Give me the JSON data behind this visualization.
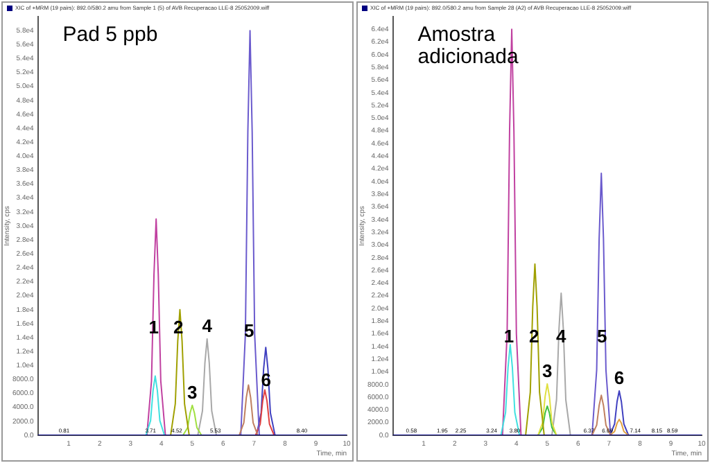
{
  "chart_data": [
    {
      "type": "line",
      "title": "XIC of +MRM (19 pairs): 892.0/580.2 amu from Sample 1 (5) of AVB Recuperacao LLE-8 25052009.wiff",
      "xlabel": "Time, min",
      "ylabel": "Intensity, cps",
      "legend": false,
      "grid": false,
      "marker": "none",
      "line_style": "solid",
      "xlim": [
        0,
        10
      ],
      "xticks": [
        1,
        2,
        3,
        4,
        5,
        6,
        7,
        8,
        9,
        10
      ],
      "ylim": [
        0,
        60000
      ],
      "yticks": [
        {
          "value": 0,
          "label": "0.0"
        },
        {
          "value": 2000,
          "label": "2000.0"
        },
        {
          "value": 4000,
          "label": "4000.0"
        },
        {
          "value": 6000,
          "label": "6000.0"
        },
        {
          "value": 8000,
          "label": "8000.0"
        },
        {
          "value": 10000,
          "label": "1.0e4"
        },
        {
          "value": 12000,
          "label": "1.2e4"
        },
        {
          "value": 14000,
          "label": "1.4e4"
        },
        {
          "value": 16000,
          "label": "1.6e4"
        },
        {
          "value": 18000,
          "label": "1.8e4"
        },
        {
          "value": 20000,
          "label": "2.0e4"
        },
        {
          "value": 22000,
          "label": "2.2e4"
        },
        {
          "value": 24000,
          "label": "2.4e4"
        },
        {
          "value": 26000,
          "label": "2.6e4"
        },
        {
          "value": 28000,
          "label": "2.8e4"
        },
        {
          "value": 30000,
          "label": "3.0e4"
        },
        {
          "value": 32000,
          "label": "3.2e4"
        },
        {
          "value": 34000,
          "label": "3.4e4"
        },
        {
          "value": 36000,
          "label": "3.6e4"
        },
        {
          "value": 38000,
          "label": "3.8e4"
        },
        {
          "value": 40000,
          "label": "4.0e4"
        },
        {
          "value": 42000,
          "label": "4.2e4"
        },
        {
          "value": 44000,
          "label": "4.4e4"
        },
        {
          "value": 46000,
          "label": "4.6e4"
        },
        {
          "value": 48000,
          "label": "4.8e4"
        },
        {
          "value": 50000,
          "label": "5.0e4"
        },
        {
          "value": 52000,
          "label": "5.2e4"
        },
        {
          "value": 54000,
          "label": "5.4e4"
        },
        {
          "value": 56000,
          "label": "5.6e4"
        },
        {
          "value": 58000,
          "label": "5.8e4"
        }
      ],
      "series": [
        {
          "color": "#000080",
          "x": [
            0,
            10
          ],
          "values": [
            0,
            0
          ]
        },
        {
          "color": "#40e0e0",
          "x": [
            3.5,
            3.65,
            3.73,
            3.8,
            3.87,
            3.95,
            4.1
          ],
          "values": [
            0,
            2100,
            6400,
            8500,
            6400,
            2100,
            0
          ]
        },
        {
          "color": "#c040a0",
          "x": [
            3.53,
            3.68,
            3.76,
            3.83,
            3.9,
            3.98,
            4.13
          ],
          "values": [
            0,
            7800,
            23000,
            31000,
            23000,
            7800,
            0
          ]
        },
        {
          "color": "#a0a000",
          "x": [
            4.3,
            4.45,
            4.53,
            4.6,
            4.67,
            4.75,
            4.9
          ],
          "values": [
            0,
            4500,
            13500,
            18000,
            13500,
            4500,
            0
          ]
        },
        {
          "color": "#a0e040",
          "x": [
            4.7,
            4.85,
            4.93,
            5.0,
            5.07,
            5.15,
            5.3
          ],
          "values": [
            0,
            1100,
            3200,
            4300,
            3200,
            1100,
            0
          ]
        },
        {
          "color": "#a8a8a8",
          "x": [
            5.18,
            5.33,
            5.41,
            5.48,
            5.55,
            5.63,
            5.78
          ],
          "values": [
            0,
            3500,
            10400,
            13800,
            10400,
            3500,
            0
          ]
        },
        {
          "color": "#c08060",
          "x": [
            6.52,
            6.67,
            6.75,
            6.82,
            6.89,
            6.97,
            7.12
          ],
          "values": [
            0,
            1800,
            5400,
            7200,
            5400,
            1800,
            0
          ]
        },
        {
          "color": "#6a5acd",
          "x": [
            6.57,
            6.72,
            6.8,
            6.87,
            6.94,
            7.02,
            7.17
          ],
          "values": [
            0,
            14500,
            43500,
            58000,
            43500,
            14500,
            0
          ]
        },
        {
          "color": "#e04040",
          "x": [
            7.05,
            7.2,
            7.28,
            7.35,
            7.42,
            7.5,
            7.65
          ],
          "values": [
            0,
            1600,
            4900,
            6500,
            4900,
            1600,
            0
          ]
        },
        {
          "color": "#4040c0",
          "x": [
            7.08,
            7.23,
            7.31,
            7.38,
            7.45,
            7.53,
            7.68
          ],
          "values": [
            0,
            3200,
            9500,
            12600,
            9500,
            3200,
            0
          ]
        }
      ],
      "annotations": [
        "Pad 5 ppb",
        {
          "text": "1",
          "x": 3.75,
          "y": 15300
        },
        {
          "text": "2",
          "x": 4.55,
          "y": 15300
        },
        {
          "text": "3",
          "x": 5.0,
          "y": 4300
        },
        {
          "text": "4",
          "x": 5.48,
          "y": 13800
        },
        {
          "text": "5",
          "x": 6.84,
          "y": 14800
        },
        {
          "text": "6",
          "x": 7.39,
          "y": 7800
        },
        {
          "text": "0.81",
          "x": 0.85,
          "y": 600
        },
        {
          "text": "3.71",
          "x": 3.65,
          "y": 600
        },
        {
          "text": "4.52",
          "x": 4.5,
          "y": 600
        },
        {
          "text": "5.53",
          "x": 5.75,
          "y": 600
        },
        {
          "text": "8.40",
          "x": 8.55,
          "y": 600
        }
      ]
    },
    {
      "type": "line",
      "title": "XIC of +MRM (19 pairs): 892.0/580.2 amu from Sample 28 (A2) of AVB Recuperacao LLE-8 25052009.wiff",
      "xlabel": "Time, min",
      "ylabel": "Intensity, cps",
      "legend": false,
      "grid": false,
      "marker": "none",
      "line_style": "solid",
      "xlim": [
        0,
        10
      ],
      "xticks": [
        1,
        2,
        3,
        4,
        5,
        6,
        7,
        8,
        9,
        10
      ],
      "ylim": [
        0,
        66000
      ],
      "yticks": [
        {
          "value": 0,
          "label": "0.0"
        },
        {
          "value": 2000,
          "label": "2000.0"
        },
        {
          "value": 4000,
          "label": "4000.0"
        },
        {
          "value": 6000,
          "label": "6000.0"
        },
        {
          "value": 8000,
          "label": "8000.0"
        },
        {
          "value": 10000,
          "label": "1.0e4"
        },
        {
          "value": 12000,
          "label": "1.2e4"
        },
        {
          "value": 14000,
          "label": "1.4e4"
        },
        {
          "value": 16000,
          "label": "1.6e4"
        },
        {
          "value": 18000,
          "label": "1.8e4"
        },
        {
          "value": 20000,
          "label": "2.0e4"
        },
        {
          "value": 22000,
          "label": "2.2e4"
        },
        {
          "value": 24000,
          "label": "2.4e4"
        },
        {
          "value": 26000,
          "label": "2.6e4"
        },
        {
          "value": 28000,
          "label": "2.8e4"
        },
        {
          "value": 30000,
          "label": "3.0e4"
        },
        {
          "value": 32000,
          "label": "3.2e4"
        },
        {
          "value": 34000,
          "label": "3.4e4"
        },
        {
          "value": 36000,
          "label": "3.6e4"
        },
        {
          "value": 38000,
          "label": "3.8e4"
        },
        {
          "value": 40000,
          "label": "4.0e4"
        },
        {
          "value": 42000,
          "label": "4.2e4"
        },
        {
          "value": 44000,
          "label": "4.4e4"
        },
        {
          "value": 46000,
          "label": "4.6e4"
        },
        {
          "value": 48000,
          "label": "4.8e4"
        },
        {
          "value": 50000,
          "label": "5.0e4"
        },
        {
          "value": 52000,
          "label": "5.2e4"
        },
        {
          "value": 54000,
          "label": "5.4e4"
        },
        {
          "value": 56000,
          "label": "5.6e4"
        },
        {
          "value": 58000,
          "label": "5.8e4"
        },
        {
          "value": 60000,
          "label": "6.0e4"
        },
        {
          "value": 62000,
          "label": "6.2e4"
        },
        {
          "value": 64000,
          "label": "6.4e4"
        }
      ],
      "series": [
        {
          "color": "#000080",
          "x": [
            0,
            10
          ],
          "values": [
            0,
            0
          ]
        },
        {
          "color": "#40e0e0",
          "x": [
            3.5,
            3.65,
            3.73,
            3.8,
            3.87,
            3.95,
            4.1
          ],
          "values": [
            0,
            3600,
            10700,
            14300,
            10700,
            3600,
            0
          ]
        },
        {
          "color": "#c040a0",
          "x": [
            3.55,
            3.7,
            3.78,
            3.85,
            3.92,
            4.0,
            4.15
          ],
          "values": [
            0,
            16000,
            48000,
            64000,
            48000,
            16000,
            0
          ]
        },
        {
          "color": "#a0a000",
          "x": [
            4.3,
            4.45,
            4.53,
            4.6,
            4.67,
            4.75,
            4.9
          ],
          "values": [
            0,
            6800,
            20300,
            27000,
            20300,
            6800,
            0
          ]
        },
        {
          "color": "#e0e040",
          "x": [
            4.7,
            4.85,
            4.93,
            5.0,
            5.07,
            5.15,
            5.3
          ],
          "values": [
            0,
            2000,
            6100,
            8100,
            6100,
            2000,
            0
          ]
        },
        {
          "color": "#40c040",
          "x": [
            4.7,
            4.85,
            4.93,
            5.0,
            5.07,
            5.15,
            5.3
          ],
          "values": [
            0,
            1200,
            3500,
            4600,
            3500,
            1200,
            0
          ]
        },
        {
          "color": "#a8a8a8",
          "x": [
            5.15,
            5.3,
            5.38,
            5.45,
            5.52,
            5.6,
            5.75
          ],
          "values": [
            0,
            5600,
            16800,
            22400,
            16800,
            5600,
            0
          ]
        },
        {
          "color": "#c08060",
          "x": [
            6.45,
            6.6,
            6.68,
            6.75,
            6.82,
            6.9,
            7.05
          ],
          "values": [
            0,
            1600,
            4700,
            6300,
            4700,
            1600,
            0
          ]
        },
        {
          "color": "#6a5acd",
          "x": [
            6.45,
            6.6,
            6.68,
            6.75,
            6.82,
            6.9,
            7.05
          ],
          "values": [
            0,
            10300,
            31000,
            41300,
            31000,
            10300,
            0
          ]
        },
        {
          "color": "#e0a040",
          "x": [
            7.03,
            7.18,
            7.26,
            7.33,
            7.4,
            7.48,
            7.63
          ],
          "values": [
            0,
            600,
            1900,
            2500,
            1900,
            600,
            0
          ]
        },
        {
          "color": "#4040c0",
          "x": [
            7.03,
            7.18,
            7.26,
            7.33,
            7.4,
            7.48,
            7.63
          ],
          "values": [
            0,
            1800,
            5300,
            7000,
            5300,
            1800,
            0
          ]
        }
      ],
      "annotations": [
        "Amostra adicionada",
        {
          "text": "1",
          "x": 3.76,
          "y": 15400
        },
        {
          "text": "2",
          "x": 4.57,
          "y": 15400
        },
        {
          "text": "3",
          "x": 5.0,
          "y": 8100
        },
        {
          "text": "4",
          "x": 5.45,
          "y": 15400
        },
        {
          "text": "5",
          "x": 6.77,
          "y": 15400
        },
        {
          "text": "6",
          "x": 7.33,
          "y": 7000
        },
        {
          "text": "0.58",
          "x": 0.6,
          "y": 700
        },
        {
          "text": "1.95",
          "x": 1.6,
          "y": 700
        },
        {
          "text": "2.25",
          "x": 2.2,
          "y": 700
        },
        {
          "text": "3.24",
          "x": 3.2,
          "y": 700
        },
        {
          "text": "3.80",
          "x": 3.95,
          "y": 700
        },
        {
          "text": "6.37",
          "x": 6.35,
          "y": 700
        },
        {
          "text": "6.69",
          "x": 6.95,
          "y": 700
        },
        {
          "text": "7.14",
          "x": 7.85,
          "y": 700
        },
        {
          "text": "8.15",
          "x": 8.55,
          "y": 700
        },
        {
          "text": "8.59",
          "x": 9.05,
          "y": 700
        }
      ]
    }
  ]
}
